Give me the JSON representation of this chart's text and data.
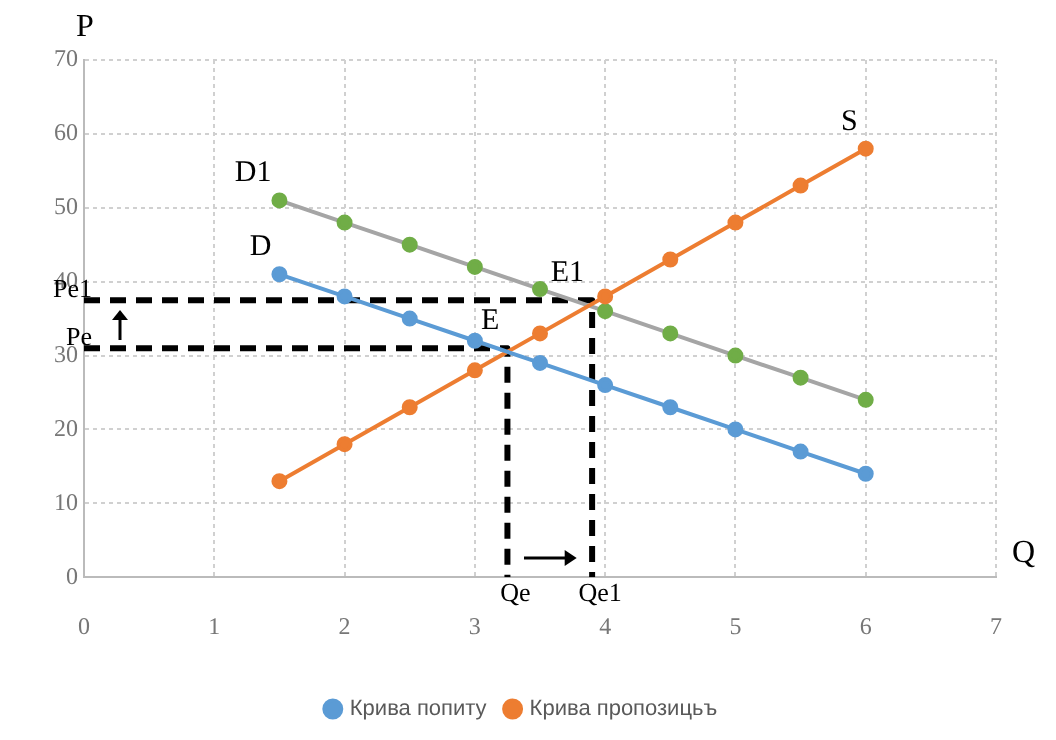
{
  "chart_data": {
    "type": "line",
    "xlabel": "Q",
    "ylabel": "P",
    "xlim": [
      0,
      7
    ],
    "xticks": [
      0,
      1,
      2,
      3,
      4,
      5,
      6,
      7
    ],
    "ylim": [
      0,
      70
    ],
    "yticks": [
      0,
      10,
      20,
      30,
      40,
      50,
      60,
      70
    ],
    "grid": true,
    "legend": "bottom",
    "marker": "circle",
    "line_style": "solid",
    "series": [
      {
        "name": "Крива попиту",
        "color": "#5b9bd5",
        "x": [
          1.5,
          2,
          2.5,
          3,
          3.5,
          4,
          4.5,
          5,
          5.5,
          6
        ],
        "values": [
          41,
          38,
          35,
          32,
          29,
          26,
          23,
          20,
          17,
          14
        ]
      },
      {
        "name": "Крива пропозицьъ",
        "color": "#ed7d31",
        "x": [
          1.5,
          2,
          2.5,
          3,
          3.5,
          4,
          4.5,
          5,
          5.5,
          6
        ],
        "values": [
          13,
          18,
          23,
          28,
          33,
          38,
          43,
          48,
          53,
          58
        ]
      },
      {
        "color": "#a5a5a5",
        "colors": [
          "#70ad47",
          "#70ad47",
          "#70ad47",
          "#70ad47",
          "#70ad47",
          "#70ad47",
          "#70ad47",
          "#70ad47",
          "#70ad47",
          "#70ad47"
        ],
        "x": [
          1.5,
          2,
          2.5,
          3,
          3.5,
          4,
          4.5,
          5,
          5.5,
          6
        ],
        "values": [
          51,
          48,
          45,
          42,
          39,
          36,
          33,
          30,
          27,
          24
        ]
      },
      {
        "color": "#000000",
        "marker": "none",
        "line_style": "dashed",
        "x": [
          0,
          3.25,
          3.25
        ],
        "values": [
          31,
          31,
          0
        ]
      },
      {
        "color": "#000000",
        "marker": "none",
        "line_style": "dashed",
        "x": [
          0,
          3.9,
          3.9
        ],
        "values": [
          37.5,
          37.5,
          0
        ]
      }
    ],
    "annotations": [
      {
        "text": "D",
        "x": 1.5,
        "y": 41
      },
      {
        "text": "D1",
        "x": 1.5,
        "y": 51
      },
      {
        "text": "S",
        "x": 6,
        "y": 58
      },
      {
        "text": "E",
        "x": 3.25,
        "y": 31
      },
      {
        "text": "E1",
        "x": 3.9,
        "y": 37.5
      },
      {
        "text": "Pe",
        "x": 0,
        "y": 31
      },
      {
        "text": "Pe1",
        "x": 0,
        "y": 37.5
      },
      {
        "text": "Qe",
        "x": 3.25,
        "y": 0
      },
      {
        "text": "Qe1",
        "x": 3.9,
        "y": 0
      }
    ]
  }
}
